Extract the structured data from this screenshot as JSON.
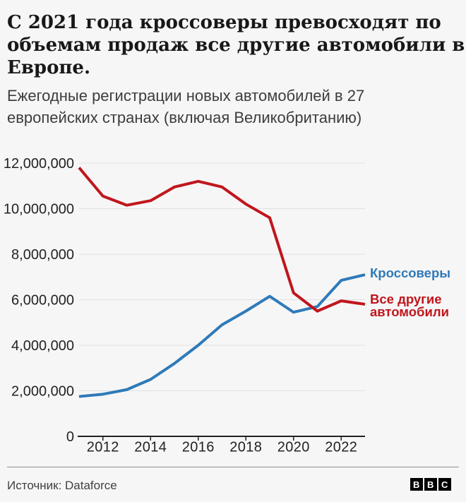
{
  "header": {
    "title_lines": [
      "С 2021 года кроссоверы превосходят по",
      "объемам продаж все другие автомобили в",
      "Европе."
    ],
    "subtitle_lines": [
      "Ежегодные регистрации новых автомобилей в 27",
      "европейских странах (включая Великобританию)"
    ]
  },
  "chart_data": {
    "type": "line",
    "x": [
      2011,
      2012,
      2013,
      2014,
      2015,
      2016,
      2017,
      2018,
      2019,
      2020,
      2021,
      2022,
      2023
    ],
    "series": [
      {
        "name": "Кроссоверы",
        "color": "#2f7ab9",
        "values": [
          1750000,
          1850000,
          2050000,
          2500000,
          3200000,
          4000000,
          4900000,
          5500000,
          6150000,
          5450000,
          5700000,
          6850000,
          7100000
        ]
      },
      {
        "name": "Все другие автомобили",
        "color": "#c0161c",
        "values": [
          11800000,
          10550000,
          10150000,
          10350000,
          10950000,
          11200000,
          10950000,
          10200000,
          9600000,
          6300000,
          5500000,
          5950000,
          5800000
        ]
      }
    ],
    "ylim": [
      0,
      12000000
    ],
    "ytick_step": 2000000,
    "xticks": [
      2012,
      2014,
      2016,
      2018,
      2020,
      2022
    ],
    "grid": "horizontal",
    "legend_position": "right-of-line-end"
  },
  "footer": {
    "source": "Источник: Dataforce"
  },
  "branding": {
    "letters": [
      "B",
      "B",
      "C"
    ]
  },
  "colors": {
    "crossovers": "#2f7ab9",
    "others": "#c0161c",
    "axis": "#222222",
    "grid": "#e0e0e0"
  }
}
